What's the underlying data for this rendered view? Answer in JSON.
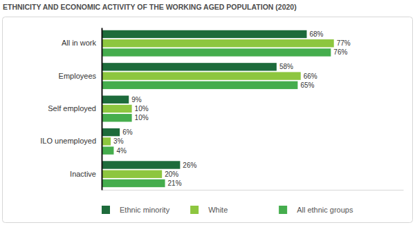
{
  "chart_data": {
    "type": "bar",
    "orientation": "horizontal",
    "title": "ETHNICITY AND ECONOMIC ACTIVITY OF THE WORKING AGED POPULATION (2020)",
    "categories": [
      "All in work",
      "Employees",
      "Self employed",
      "ILO unemployed",
      "Inactive"
    ],
    "series": [
      {
        "name": "Ethnic minority",
        "color": "#1d6b3b",
        "values": [
          68,
          58,
          9,
          6,
          26
        ],
        "value_labels": [
          "68%",
          "58%",
          "9%",
          "6%",
          "26%"
        ]
      },
      {
        "name": "White",
        "color": "#8dc63f",
        "values": [
          77,
          66,
          10,
          3,
          20
        ],
        "value_labels": [
          "77%",
          "66%",
          "10%",
          "3%",
          "20%"
        ]
      },
      {
        "name": "All ethnic groups",
        "color": "#45ad4d",
        "values": [
          76,
          65,
          10,
          4,
          21
        ],
        "value_labels": [
          "76%",
          "65%",
          "10%",
          "4%",
          "21%"
        ]
      }
    ],
    "xlim": [
      0,
      100
    ],
    "tick_labels": "y",
    "data_labels": true,
    "legend": "bottom"
  }
}
